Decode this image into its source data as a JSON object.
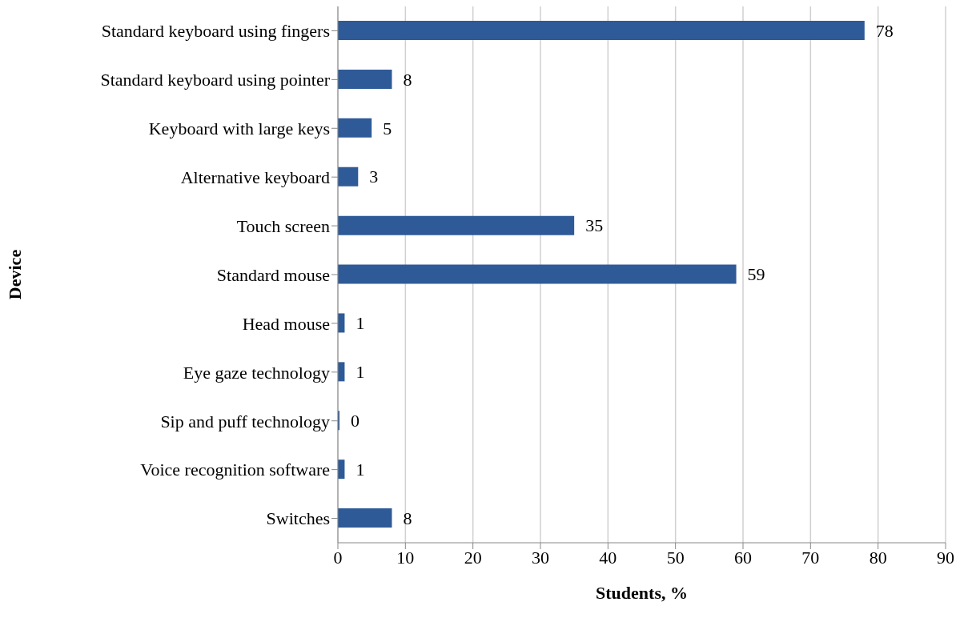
{
  "chart_data": {
    "type": "bar",
    "orientation": "horizontal",
    "xlabel": "Students, %",
    "ylabel": "Device",
    "categories": [
      "Standard keyboard using fingers",
      "Standard keyboard using pointer",
      "Keyboard with large keys",
      "Alternative keyboard",
      "Touch screen",
      "Standard mouse",
      "Head mouse",
      "Eye gaze technology",
      "Sip and puff technology",
      "Voice recognition software",
      "Switches"
    ],
    "values": [
      78,
      8,
      5,
      3,
      35,
      59,
      1,
      1,
      0,
      1,
      8
    ],
    "color": "#2e5a97",
    "xlim": [
      0,
      90
    ],
    "xticks": [
      0,
      10,
      20,
      30,
      40,
      50,
      60,
      70,
      80,
      90
    ],
    "grid": "x",
    "data_labels": true
  }
}
